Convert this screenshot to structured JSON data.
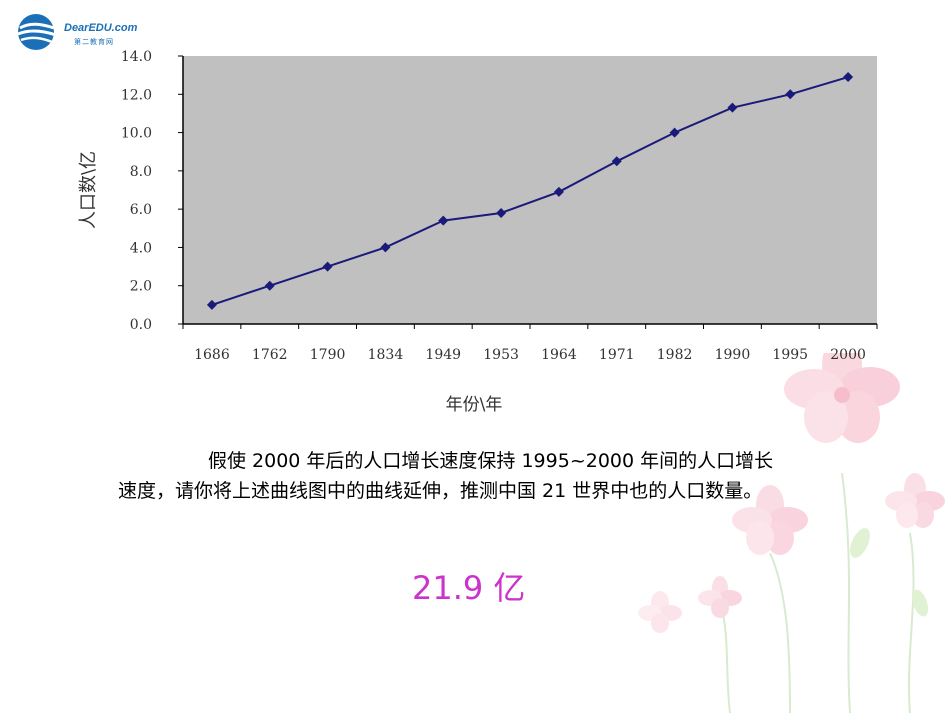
{
  "logo": {
    "brand": "DearEDU.com",
    "sub": "第二教育网"
  },
  "chart_data": {
    "type": "line",
    "categories": [
      "1686",
      "1762",
      "1790",
      "1834",
      "1949",
      "1953",
      "1964",
      "1971",
      "1982",
      "1990",
      "1995",
      "2000"
    ],
    "series": [
      {
        "values": [
          1.0,
          2.0,
          3.0,
          4.0,
          5.4,
          5.8,
          6.9,
          8.5,
          10.0,
          11.3,
          12.0,
          12.9
        ]
      }
    ],
    "xlabel": "年份\\年",
    "ylabel": "人口数\\亿",
    "ylim": [
      0,
      14
    ],
    "yticks": [
      "0.0",
      "2.0",
      "4.0",
      "6.0",
      "8.0",
      "10.0",
      "12.0",
      "14.0"
    ],
    "grid": false,
    "plot_background": "#c0c0c0",
    "line_color": "#1a1a7a"
  },
  "question": {
    "line1": "假使 2000 年后的人口增长速度保持 1995~2000 年间的人口增长",
    "line2": "速度，请你将上述曲线图中的曲线延伸，推测中国 21 世界中也的人口数量。"
  },
  "answer": "21.9 亿",
  "colors": {
    "answer": "#cc33cc"
  }
}
